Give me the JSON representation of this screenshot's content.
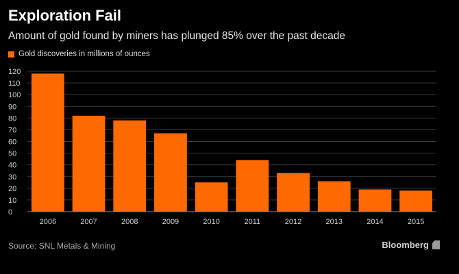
{
  "header": {
    "title": "Exploration Fail",
    "subtitle": "Amount of gold found by miners has plunged 85% over the past decade"
  },
  "legend": {
    "label": "Gold discoveries in millions of ounces"
  },
  "footer": {
    "source": "Source: SNL Metals & Mining",
    "brand": "Bloomberg"
  },
  "colors": {
    "bar": "#ff6a00",
    "background": "#000000",
    "grid": "#3a3a3a",
    "axis_text": "#cfcfcf"
  },
  "chart_data": {
    "type": "bar",
    "title": "Exploration Fail",
    "subtitle": "Amount of gold found by miners has plunged 85% over the past decade",
    "categories": [
      "2006",
      "2007",
      "2008",
      "2009",
      "2010",
      "2011",
      "2012",
      "2013",
      "2014",
      "2015"
    ],
    "series": [
      {
        "name": "Gold discoveries in millions of ounces",
        "values": [
          118,
          82,
          78,
          67,
          25,
          44,
          33,
          26,
          19,
          18
        ]
      }
    ],
    "ylim": [
      0,
      120
    ],
    "yticks": [
      0,
      10,
      20,
      30,
      40,
      50,
      60,
      70,
      80,
      90,
      100,
      110,
      120
    ],
    "grid": true,
    "legend_position": "top-left"
  }
}
